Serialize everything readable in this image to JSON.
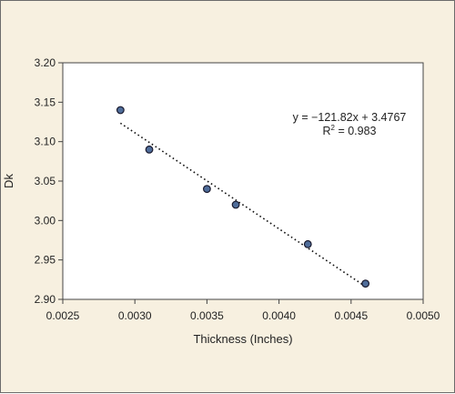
{
  "chart_data": {
    "type": "scatter",
    "xlabel": "Thickness (Inches)",
    "ylabel": "Dk",
    "xlim": [
      0.0025,
      0.005
    ],
    "ylim": [
      2.9,
      3.2
    ],
    "x_ticks": [
      "0.0025",
      "0.0030",
      "0.0035",
      "0.0040",
      "0.0045",
      "0.0050"
    ],
    "y_ticks": [
      "2.90",
      "2.95",
      "3.00",
      "3.05",
      "3.10",
      "3.15",
      "3.20"
    ],
    "grid": false,
    "legend": "none",
    "series": [
      {
        "x": [
          0.0029,
          0.0031,
          0.0035,
          0.0037,
          0.0042,
          0.0046
        ],
        "y": [
          3.14,
          3.09,
          3.04,
          3.02,
          2.97,
          2.92
        ]
      }
    ],
    "trendline": {
      "type": "linear",
      "slope": -121.82,
      "intercept": 3.4767,
      "x_range": [
        0.0029,
        0.0046
      ],
      "style": "dotted"
    },
    "annotations": {
      "equation": "y = −121.82x + 3.4767",
      "r2_prefix": "R",
      "r2_sup": "2",
      "r2_suffix": " = 0.983"
    },
    "colors": {
      "background": "#f7f0e0",
      "plot_area": "#ffffff",
      "marker_fill": "#4f6d9a",
      "marker_stroke": "#1a1a2e",
      "trendline": "#111111"
    }
  }
}
